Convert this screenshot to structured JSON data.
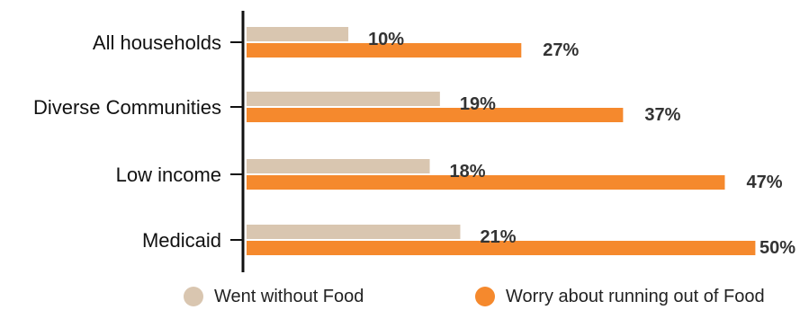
{
  "chart_data": {
    "type": "bar",
    "orientation": "horizontal",
    "categories": [
      "All households",
      "Diverse Communities",
      "Low income",
      "Medicaid"
    ],
    "series": [
      {
        "name": "Went without Food",
        "values": [
          10,
          19,
          18,
          21
        ],
        "labels": [
          "10%",
          "19%",
          "18%",
          "21%"
        ],
        "color": "#d9c6b0"
      },
      {
        "name": "Worry about running out of Food",
        "values": [
          27,
          37,
          47,
          50
        ],
        "labels": [
          "27%",
          "37%",
          "47%",
          "50%"
        ],
        "color": "#f5892d"
      }
    ],
    "xlim": [
      0,
      52
    ],
    "grid": false,
    "legend_position": "bottom"
  }
}
